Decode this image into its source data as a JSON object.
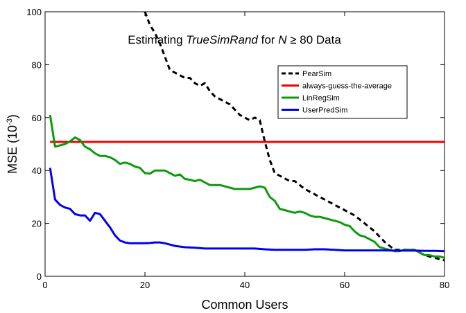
{
  "chart_data": {
    "type": "line",
    "title": {
      "prefix": "Estimating ",
      "italic_name": "TrueSimRand",
      "mid": " for ",
      "italic_var": "N",
      "suffix": " ≥ 80 Data"
    },
    "xlabel": "Common Users",
    "ylabel": {
      "base": "MSE (10",
      "exp": "-3",
      "close": ")"
    },
    "xlim": [
      0,
      80
    ],
    "ylim": [
      0,
      100
    ],
    "xticks": [
      0,
      20,
      40,
      60,
      80
    ],
    "yticks": [
      0,
      20,
      40,
      60,
      80,
      100
    ],
    "grid": false,
    "legend_position": "upper-right",
    "series": [
      {
        "name": "PearSim",
        "color": "#000000",
        "dash": true,
        "x": [
          20,
          21,
          22,
          23,
          24,
          25,
          26,
          27,
          28,
          29,
          30,
          31,
          32,
          33,
          34,
          35,
          36,
          37,
          38,
          39,
          40,
          41,
          42,
          43,
          44,
          45,
          46,
          47,
          48,
          49,
          50,
          52,
          54,
          56,
          58,
          60,
          62,
          64,
          66,
          68,
          70,
          72,
          74,
          76,
          78,
          80
        ],
        "y": [
          100,
          95,
          92,
          88,
          83,
          78,
          77,
          76,
          75,
          75,
          73,
          72,
          73,
          70,
          68,
          67,
          66,
          65,
          63,
          61,
          60,
          59,
          60,
          59,
          51,
          44,
          39,
          38,
          37,
          36,
          36,
          33,
          31,
          29,
          27,
          25,
          23,
          20,
          17,
          13,
          10,
          10,
          10,
          8,
          7,
          6
        ]
      },
      {
        "name": "always-guess-the-average",
        "color": "#ee0000",
        "dash": false,
        "x": [
          1,
          80
        ],
        "y": [
          50.8,
          50.8
        ]
      },
      {
        "name": "LinRegSim",
        "color": "#0a9a0a",
        "dash": false,
        "x": [
          1,
          2,
          3,
          4,
          5,
          6,
          7,
          8,
          9,
          10,
          11,
          12,
          13,
          14,
          15,
          16,
          17,
          18,
          19,
          20,
          21,
          22,
          23,
          24,
          25,
          26,
          27,
          28,
          29,
          30,
          31,
          32,
          33,
          34,
          35,
          36,
          37,
          38,
          39,
          40,
          41,
          42,
          43,
          44,
          45,
          46,
          47,
          48,
          49,
          50,
          51,
          52,
          53,
          54,
          55,
          56,
          57,
          58,
          59,
          60,
          61,
          62,
          63,
          64,
          65,
          66,
          67,
          68,
          69,
          70,
          71,
          72,
          73,
          74,
          75,
          76,
          77,
          78,
          79,
          80
        ],
        "y": [
          61,
          49,
          49.5,
          50,
          51,
          52.5,
          51.5,
          49,
          48,
          46.5,
          45.5,
          45.5,
          45,
          44,
          42.5,
          43,
          42.5,
          41.5,
          41,
          39,
          38.8,
          40,
          40,
          40,
          39,
          38,
          38.5,
          36.8,
          36.5,
          36,
          36.5,
          35.5,
          34.5,
          34.5,
          34.5,
          34,
          33.5,
          33,
          33,
          33,
          33,
          33.5,
          34,
          33.5,
          30,
          28.5,
          25.5,
          25,
          24.5,
          24,
          24.5,
          24,
          23,
          22.5,
          22.5,
          22,
          21.5,
          21,
          20.5,
          19.5,
          19,
          17,
          15.5,
          15,
          14,
          13,
          11,
          10.5,
          10,
          9.5,
          9.5,
          10,
          10,
          10,
          9,
          8,
          8,
          7.5,
          7.5,
          7
        ]
      },
      {
        "name": "UserPredSim",
        "color": "#0000ee",
        "dash": false,
        "x": [
          1,
          2,
          3,
          4,
          5,
          6,
          7,
          8,
          9,
          10,
          11,
          12,
          13,
          14,
          15,
          16,
          17,
          18,
          19,
          20,
          21,
          22,
          23,
          24,
          25,
          26,
          28,
          30,
          32,
          34,
          36,
          38,
          40,
          42,
          44,
          46,
          48,
          50,
          52,
          54,
          56,
          58,
          60,
          62,
          64,
          66,
          68,
          70,
          72,
          74,
          76,
          78,
          80
        ],
        "y": [
          41,
          29,
          27,
          26,
          25.5,
          23.5,
          23,
          23,
          21,
          24,
          23.5,
          21,
          18.5,
          15.5,
          13.5,
          12.8,
          12.5,
          12.5,
          12.5,
          12.5,
          12.6,
          12.8,
          12.8,
          12.5,
          12,
          11.5,
          11,
          10.8,
          10.5,
          10.5,
          10.5,
          10.5,
          10.5,
          10.5,
          10.2,
          10,
          10,
          10,
          10,
          10.2,
          10.2,
          10,
          9.8,
          9.8,
          9.8,
          9.8,
          9.8,
          9.7,
          9.7,
          9.7,
          9.6,
          9.6,
          9.5
        ]
      }
    ]
  }
}
